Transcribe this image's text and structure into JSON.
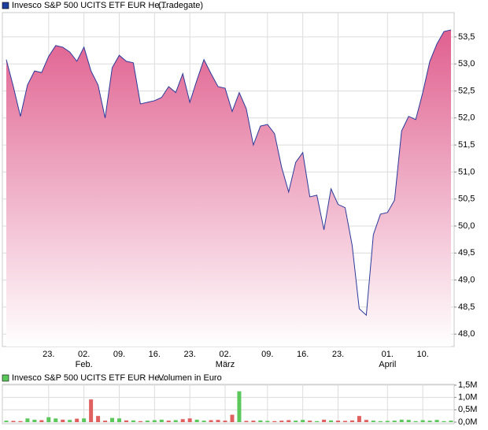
{
  "chart_data": [
    {
      "type": "area",
      "title": "Invesco S&P 500 UCITS ETF EUR He...",
      "source": "(Tradegate)",
      "legend_color": "#1f3f9f",
      "color": "#2b3a9a",
      "fill_top": "#e0608f",
      "fill_bottom": "#ffffff",
      "grid": true,
      "categories": [
        null,
        null,
        null,
        null,
        null,
        null,
        "23.",
        null,
        null,
        null,
        null,
        "02.",
        null,
        null,
        null,
        null,
        "09.",
        null,
        null,
        null,
        null,
        "16.",
        null,
        null,
        null,
        null,
        "23.",
        null,
        null,
        null,
        null,
        "02.",
        null,
        null,
        null,
        null,
        null,
        "09.",
        null,
        null,
        null,
        null,
        "16.",
        null,
        null,
        null,
        null,
        "23.",
        null,
        null,
        null,
        null,
        null,
        null,
        "01.",
        null,
        null,
        null,
        null,
        "10.",
        null,
        null,
        null,
        null
      ],
      "month_labels": [
        null,
        null,
        null,
        null,
        null,
        null,
        null,
        null,
        null,
        null,
        null,
        "Feb.",
        null,
        null,
        null,
        null,
        null,
        null,
        null,
        null,
        null,
        null,
        null,
        null,
        null,
        null,
        null,
        null,
        null,
        null,
        null,
        "März",
        null,
        null,
        null,
        null,
        null,
        null,
        null,
        null,
        null,
        null,
        null,
        null,
        null,
        null,
        null,
        null,
        null,
        null,
        null,
        null,
        null,
        null,
        "April",
        null,
        null,
        null,
        null,
        null,
        null,
        null,
        null,
        null
      ],
      "values": [
        53.08,
        52.58,
        52.03,
        52.61,
        52.87,
        52.84,
        53.14,
        53.34,
        53.31,
        53.22,
        53.05,
        53.31,
        52.87,
        52.61,
        52.0,
        52.93,
        53.16,
        53.05,
        53.02,
        52.26,
        52.29,
        52.32,
        52.38,
        52.58,
        52.47,
        52.82,
        52.29,
        52.7,
        53.08,
        52.82,
        52.58,
        52.55,
        52.12,
        52.47,
        52.17,
        51.5,
        51.85,
        51.88,
        51.71,
        51.09,
        50.63,
        51.18,
        51.36,
        50.54,
        50.57,
        49.93,
        50.69,
        50.4,
        50.34,
        49.64,
        48.47,
        48.35,
        49.84,
        50.22,
        50.25,
        50.48,
        51.76,
        52.03,
        51.97,
        52.47,
        53.05,
        53.37,
        53.6,
        53.63
      ],
      "ylim": [
        47.77,
        53.95
      ],
      "yticks": [
        {
          "value": 48,
          "label": "48,0"
        },
        {
          "value": 48.5,
          "label": "48,5"
        },
        {
          "value": 49,
          "label": "49,0"
        },
        {
          "value": 49.5,
          "label": "49,5"
        },
        {
          "value": 50,
          "label": "50,0"
        },
        {
          "value": 50.5,
          "label": "50,5"
        },
        {
          "value": 51,
          "label": "51,0"
        },
        {
          "value": 51.5,
          "label": "51,5"
        },
        {
          "value": 52,
          "label": "52,0"
        },
        {
          "value": 52.5,
          "label": "52,5"
        },
        {
          "value": 53,
          "label": "53,0"
        },
        {
          "value": 53.5,
          "label": "53,5"
        }
      ]
    },
    {
      "type": "bar",
      "title": "Invesco S&P 500 UCITS ETF EUR He...",
      "unit_label": "Volumen in Euro",
      "legend_color": "#5cc85c",
      "grid": true,
      "values": [
        60000,
        50000,
        40000,
        150000,
        100000,
        80000,
        200000,
        150000,
        100000,
        90000,
        140000,
        150000,
        920000,
        250000,
        60000,
        170000,
        150000,
        70000,
        70000,
        40000,
        60000,
        80000,
        100000,
        60000,
        80000,
        120000,
        150000,
        100000,
        60000,
        80000,
        90000,
        60000,
        300000,
        1250000,
        50000,
        60000,
        70000,
        50000,
        40000,
        60000,
        80000,
        60000,
        90000,
        60000,
        40000,
        100000,
        70000,
        60000,
        50000,
        70000,
        250000,
        90000,
        60000,
        40000,
        50000,
        60000,
        100000,
        90000,
        40000,
        80000,
        60000,
        90000,
        40000,
        60000
      ],
      "colors": [
        "#5cc85c",
        "#e06060",
        "#e06060",
        "#5cc85c",
        "#5cc85c",
        "#e06060",
        "#5cc85c",
        "#5cc85c",
        "#e06060",
        "#5cc85c",
        "#e06060",
        "#5cc85c",
        "#e06060",
        "#e06060",
        "#e06060",
        "#5cc85c",
        "#5cc85c",
        "#e06060",
        "#5cc85c",
        "#e06060",
        "#5cc85c",
        "#5cc85c",
        "#5cc85c",
        "#e06060",
        "#5cc85c",
        "#e06060",
        "#e06060",
        "#5cc85c",
        "#5cc85c",
        "#e06060",
        "#e06060",
        "#e06060",
        "#e06060",
        "#5cc85c",
        "#e06060",
        "#e06060",
        "#5cc85c",
        "#5cc85c",
        "#e06060",
        "#e06060",
        "#e06060",
        "#5cc85c",
        "#5cc85c",
        "#e06060",
        "#5cc85c",
        "#e06060",
        "#5cc85c",
        "#e06060",
        "#e06060",
        "#e06060",
        "#e06060",
        "#e06060",
        "#5cc85c",
        "#5cc85c",
        "#5cc85c",
        "#5cc85c",
        "#5cc85c",
        "#5cc85c",
        "#5cc85c",
        "#5cc85c",
        "#5cc85c",
        "#5cc85c",
        "#5cc85c",
        "#5cc85c"
      ],
      "ylim": [
        0,
        1500000
      ],
      "yticks": [
        {
          "value": 0,
          "label": "0,0M"
        },
        {
          "value": 500000,
          "label": "0,5M"
        },
        {
          "value": 1000000,
          "label": "1,0M"
        },
        {
          "value": 1500000,
          "label": "1,5M"
        }
      ]
    }
  ]
}
